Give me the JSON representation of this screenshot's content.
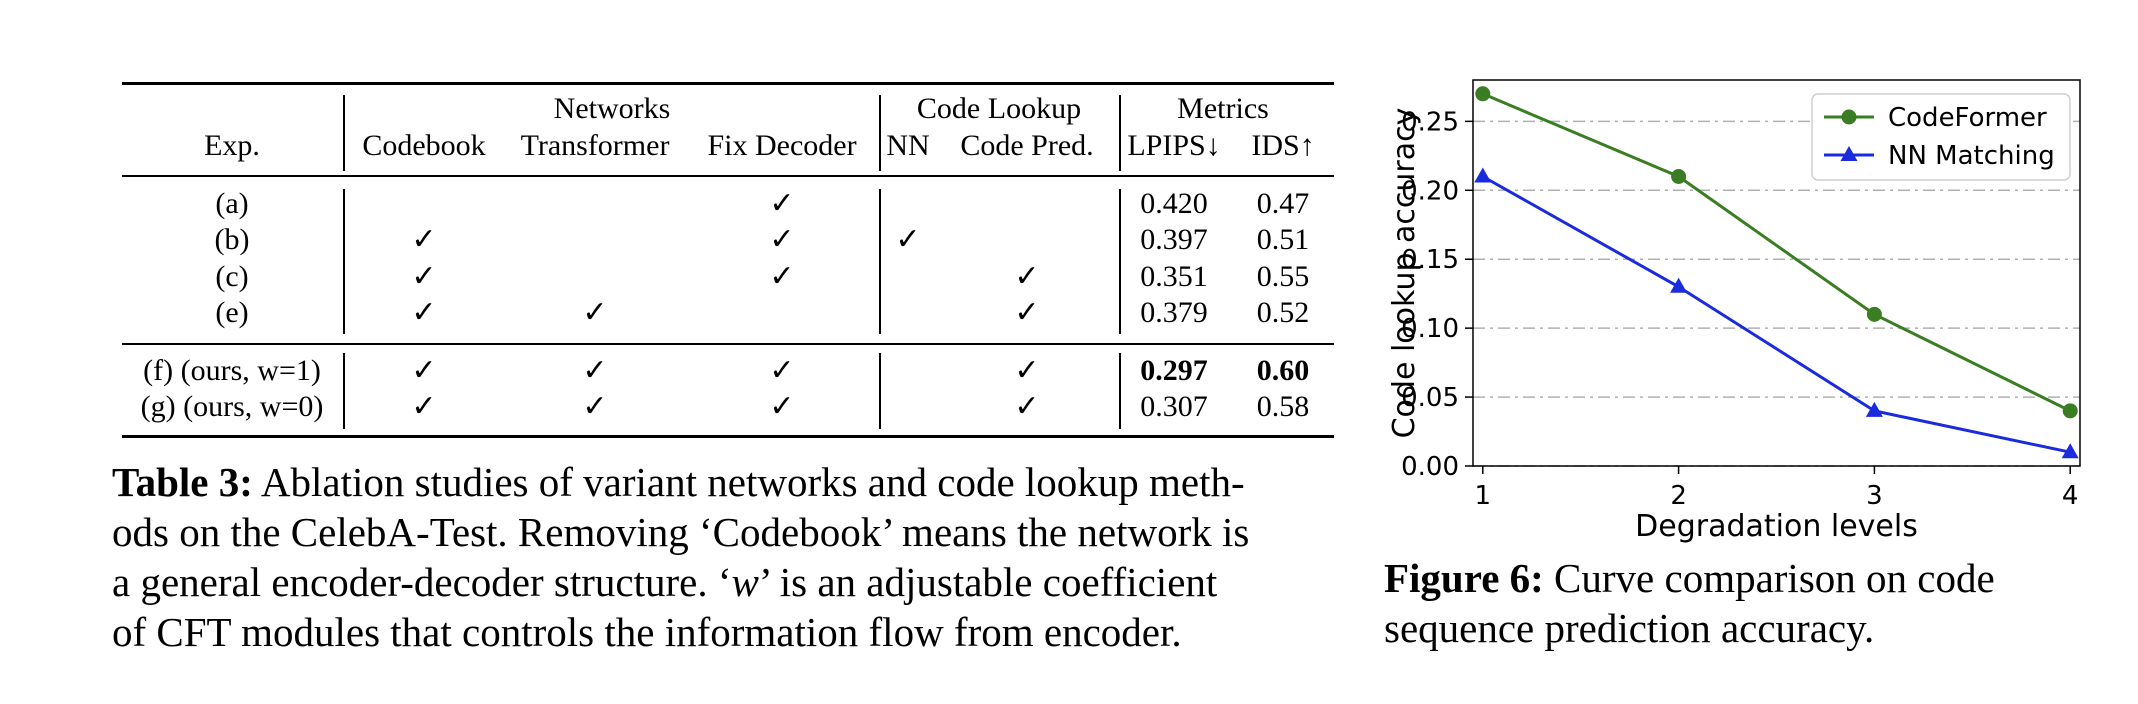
{
  "table": {
    "groups": {
      "networks": "Networks",
      "code_lookup": "Code Lookup",
      "metrics": "Metrics"
    },
    "columns": {
      "exp": "Exp.",
      "codebook": "Codebook",
      "transformer": "Transformer",
      "fix_decoder": "Fix Decoder",
      "nn": "NN",
      "code_pred": "Code Pred.",
      "lpips": "LPIPS↓",
      "ids": "IDS↑"
    },
    "check_mark": "✓",
    "rows": [
      {
        "exp": "(a)",
        "codebook": false,
        "transformer": false,
        "fix_decoder": true,
        "nn": false,
        "code_pred": false,
        "lpips": "0.420",
        "ids": "0.47",
        "bold": false
      },
      {
        "exp": "(b)",
        "codebook": true,
        "transformer": false,
        "fix_decoder": true,
        "nn": true,
        "code_pred": false,
        "lpips": "0.397",
        "ids": "0.51",
        "bold": false
      },
      {
        "exp": "(c)",
        "codebook": true,
        "transformer": false,
        "fix_decoder": true,
        "nn": false,
        "code_pred": true,
        "lpips": "0.351",
        "ids": "0.55",
        "bold": false
      },
      {
        "exp": "(e)",
        "codebook": true,
        "transformer": true,
        "fix_decoder": false,
        "nn": false,
        "code_pred": true,
        "lpips": "0.379",
        "ids": "0.52",
        "bold": false
      },
      {
        "exp": "(f) (ours, w=1)",
        "codebook": true,
        "transformer": true,
        "fix_decoder": true,
        "nn": false,
        "code_pred": true,
        "lpips": "0.297",
        "ids": "0.60",
        "bold": true
      },
      {
        "exp": "(g) (ours, w=0)",
        "codebook": true,
        "transformer": true,
        "fix_decoder": true,
        "nn": false,
        "code_pred": true,
        "lpips": "0.307",
        "ids": "0.58",
        "bold": false
      }
    ]
  },
  "table_caption": {
    "label": "Table 3:",
    "line1": "Ablation studies of variant networks and code lookup meth-",
    "line2": "ods on the CelebA-Test. Removing ‘Codebook’ means the network is",
    "line3_pre": "a general encoder-decoder structure. ‘",
    "line3_var": "w",
    "line3_post": "’ is an adjustable coefficient",
    "line4": "of CFT modules that controls the information flow from encoder."
  },
  "figure_caption": {
    "label": "Figure 6:",
    "line1": "Curve comparison on code",
    "line2": "sequence prediction accuracy."
  },
  "chart_data": {
    "type": "line",
    "x": [
      1,
      2,
      3,
      4
    ],
    "xlabel": "Degradation levels",
    "ylabel": "Code lookup accuracy",
    "xlim": [
      0.95,
      4.05
    ],
    "ylim": [
      0,
      0.28
    ],
    "yticks": [
      "0.00",
      "0.05",
      "0.10",
      "0.15",
      "0.20",
      "0.25"
    ],
    "xticks": [
      "1",
      "2",
      "3",
      "4"
    ],
    "grid": "horizontal dash-dot",
    "legend": "top-right",
    "series": [
      {
        "name": "CodeFormer",
        "values": [
          0.27,
          0.21,
          0.11,
          0.04
        ],
        "color": "#3a7d23",
        "marker": "circle"
      },
      {
        "name": "NN Matching",
        "values": [
          0.21,
          0.13,
          0.04,
          0.01
        ],
        "color": "#1a2bdd",
        "marker": "triangle"
      }
    ]
  }
}
